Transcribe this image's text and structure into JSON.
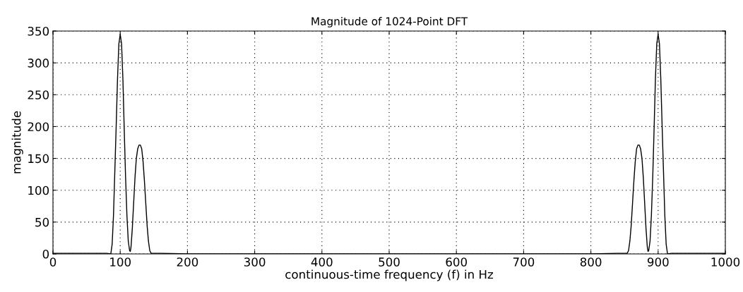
{
  "chart_data": {
    "type": "line",
    "title": "Magnitude of 1024-Point DFT",
    "xlabel": "continuous-time frequency (f) in Hz",
    "ylabel": "magnitude",
    "x": [
      0,
      20,
      40,
      60,
      80,
      86,
      88,
      90,
      92,
      94,
      96,
      98,
      100,
      102,
      104,
      106,
      108,
      110,
      112,
      114,
      115,
      116,
      118,
      120,
      122,
      124,
      126,
      128,
      130,
      132,
      134,
      136,
      138,
      140,
      142,
      144,
      146,
      160,
      200,
      300,
      400,
      500,
      600,
      700,
      800,
      840,
      854,
      856,
      858,
      860,
      862,
      864,
      866,
      868,
      870,
      872,
      874,
      876,
      878,
      880,
      882,
      884,
      885,
      886,
      888,
      890,
      892,
      894,
      896,
      898,
      900,
      902,
      904,
      906,
      908,
      910,
      912,
      914,
      920,
      940,
      960,
      980,
      1000
    ],
    "series": [
      {
        "color": "#000000",
        "values": [
          1,
          1,
          1,
          1,
          1,
          0,
          15,
          60,
          130,
          200,
          275,
          330,
          345,
          330,
          275,
          195,
          120,
          60,
          20,
          5,
          4,
          10,
          40,
          80,
          120,
          150,
          165,
          171,
          171,
          165,
          145,
          115,
          80,
          45,
          20,
          5,
          1,
          1,
          0,
          0,
          0,
          0,
          0,
          0,
          0,
          1,
          1,
          5,
          20,
          45,
          80,
          115,
          145,
          165,
          171,
          171,
          165,
          150,
          120,
          80,
          40,
          10,
          4,
          5,
          20,
          60,
          120,
          195,
          275,
          330,
          345,
          330,
          275,
          200,
          130,
          60,
          15,
          0,
          1,
          1,
          1,
          1,
          1
        ]
      }
    ],
    "xlim": [
      0,
      1000
    ],
    "ylim": [
      0,
      350
    ],
    "xticks": [
      0,
      100,
      200,
      300,
      400,
      500,
      600,
      700,
      800,
      900,
      1000
    ],
    "yticks": [
      0,
      50,
      100,
      150,
      200,
      250,
      300,
      350
    ],
    "grid": true,
    "legend": false,
    "marker": "none",
    "line_style": "solid"
  }
}
